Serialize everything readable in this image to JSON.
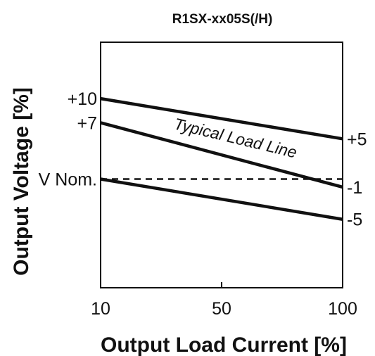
{
  "chart_data": {
    "type": "line",
    "title": "R1SX-xx05S(/H)",
    "xlabel": "Output Load Current [%]",
    "ylabel": "Output Voltage [%]",
    "x_ticks": [
      "10",
      "50",
      "100"
    ],
    "left_labels": [
      "+10",
      "+7",
      "V Nom."
    ],
    "right_labels": [
      "+5",
      "-1",
      "-5"
    ],
    "annotation": "Typical Load Line",
    "series": [
      {
        "id": "upper",
        "x": [
          10,
          100
        ],
        "y": [
          10,
          5
        ],
        "style": "solid"
      },
      {
        "id": "typical",
        "x": [
          10,
          100
        ],
        "y": [
          7,
          -1
        ],
        "style": "solid"
      },
      {
        "id": "nominal",
        "x": [
          10,
          100
        ],
        "y": [
          0,
          0
        ],
        "style": "dashed"
      },
      {
        "id": "lower",
        "x": [
          10,
          100
        ],
        "y": [
          0,
          -5
        ],
        "style": "solid"
      }
    ],
    "ylim": [
      -13.5,
      17
    ],
    "grid": false,
    "legend": "none"
  }
}
